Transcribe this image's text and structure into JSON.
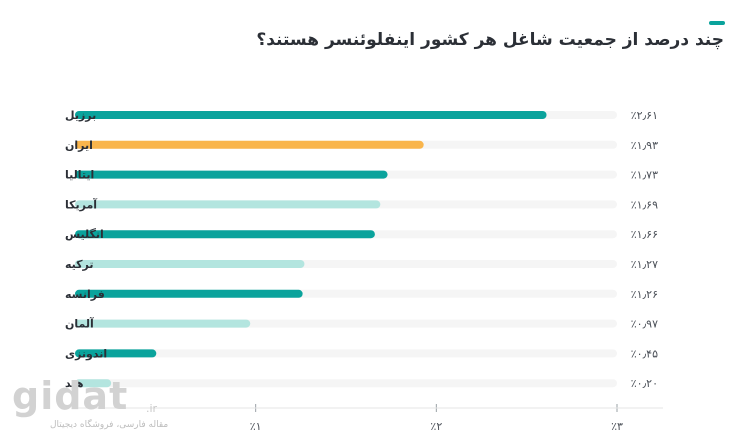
{
  "title": "چند درصد از جمعیت شاغل هر کشور اینفلوئنسر هستند؟",
  "colors": {
    "accent": "#0aa39c",
    "teal": "#0aa39c",
    "orange": "#f9b54c",
    "light_teal": "#b3e5df",
    "track": "#f5f5f5",
    "text": "#2b2f36"
  },
  "chart_data": {
    "type": "bar",
    "orientation": "horizontal",
    "categories": [
      "برزیل",
      "ایران",
      "ایتالیا",
      "آمریکا",
      "انگلیس",
      "ترکیه",
      "فرانسه",
      "آلمان",
      "اندونزی",
      "هند"
    ],
    "values": [
      2.61,
      1.93,
      1.73,
      1.69,
      1.66,
      1.27,
      1.26,
      0.97,
      0.45,
      0.2
    ],
    "value_labels": [
      "٪۲٫۶۱",
      "٪۱٫۹۳",
      "٪۱٫۷۳",
      "٪۱٫۶۹",
      "٪۱٫۶۶",
      "٪۱٫۲۷",
      "٪۱٫۲۶",
      "٪۰٫۹۷",
      "٪۰٫۴۵",
      "٪۰٫۲۰"
    ],
    "bar_colors": [
      "teal",
      "orange",
      "teal",
      "light_teal",
      "teal",
      "light_teal",
      "teal",
      "light_teal",
      "teal",
      "light_teal"
    ],
    "x_ticks": [
      1,
      2,
      3
    ],
    "x_tick_labels": [
      "٪۱",
      "٪۲",
      "٪۳"
    ],
    "xlim": [
      0,
      3
    ],
    "grid": false,
    "legend": "none"
  },
  "watermark": {
    "logo": "gidat",
    "suffix": ".ir",
    "tagline": "مقاله فارسی، فروشگاه دیجیتال"
  }
}
